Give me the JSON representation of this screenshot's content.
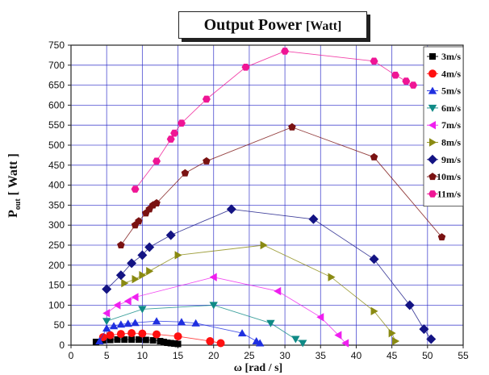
{
  "chart_data": {
    "type": "line",
    "title_main": "Output Power",
    "title_unit": "[Watt]",
    "ylabel_main": "P",
    "ylabel_sub": "out",
    "ylabel_unit": "[ Watt ]",
    "xlabel": "ω [rad / s]",
    "xlim": [
      0,
      55
    ],
    "ylim": [
      0,
      750
    ],
    "xticks": [
      0,
      5,
      10,
      15,
      20,
      25,
      30,
      35,
      40,
      45,
      50,
      55
    ],
    "yticks": [
      0,
      50,
      100,
      150,
      200,
      250,
      300,
      350,
      400,
      450,
      500,
      550,
      600,
      650,
      700,
      750
    ],
    "grid": true,
    "legend_position": "right",
    "series": [
      {
        "name": "3m/s",
        "marker": "square",
        "color": "#000000",
        "x": [
          3.5,
          4.5,
          5.5,
          6.5,
          7.5,
          8.5,
          9.5,
          10.5,
          11.5,
          12.5,
          13.0,
          13.5,
          14.0,
          14.5,
          15.0
        ],
        "y": [
          8,
          12,
          13,
          14,
          14,
          14,
          14,
          13,
          12,
          10,
          8,
          6,
          5,
          4,
          3
        ]
      },
      {
        "name": "4m/s",
        "marker": "circle",
        "color": "#ff1010",
        "x": [
          4.5,
          5.5,
          7.0,
          8.5,
          10.0,
          12.0,
          15.0,
          19.5,
          21.0
        ],
        "y": [
          20,
          25,
          28,
          30,
          29,
          27,
          22,
          10,
          5
        ]
      },
      {
        "name": "5m/s",
        "marker": "triangle-up",
        "color": "#1f2fe0",
        "x": [
          4.0,
          5.0,
          6.0,
          7.0,
          8.0,
          9.0,
          12.0,
          15.5,
          17.5,
          24.0,
          26.0,
          26.5
        ],
        "y": [
          10,
          42,
          48,
          52,
          54,
          56,
          60,
          58,
          55,
          30,
          10,
          5
        ]
      },
      {
        "name": "6m/s",
        "marker": "triangle-down",
        "color": "#0f8a86",
        "x": [
          5.0,
          10.0,
          20.0,
          28.0,
          31.5,
          32.5
        ],
        "y": [
          60,
          90,
          100,
          55,
          15,
          5
        ]
      },
      {
        "name": "7m/s",
        "marker": "triangle-left",
        "color": "#ef1fef",
        "x": [
          5.0,
          6.5,
          8.0,
          9.0,
          20.0,
          29.0,
          35.0,
          37.5,
          38.5
        ],
        "y": [
          80,
          100,
          110,
          120,
          170,
          135,
          70,
          25,
          5
        ]
      },
      {
        "name": "8m/s",
        "marker": "triangle-right",
        "color": "#8a8a12",
        "x": [
          7.5,
          9.0,
          10.0,
          11.0,
          15.0,
          27.0,
          36.5,
          42.5,
          45.0,
          45.5
        ],
        "y": [
          155,
          165,
          175,
          185,
          225,
          250,
          170,
          85,
          30,
          10
        ]
      },
      {
        "name": "9m/s",
        "marker": "diamond",
        "color": "#131383",
        "x": [
          5.0,
          7.0,
          8.5,
          10.0,
          11.0,
          14.0,
          22.5,
          34.0,
          42.5,
          47.5,
          49.5,
          50.5
        ],
        "y": [
          140,
          175,
          205,
          225,
          245,
          275,
          340,
          315,
          215,
          100,
          40,
          15
        ]
      },
      {
        "name": "10m/s",
        "marker": "pentagon",
        "color": "#7a1212",
        "x": [
          7.0,
          9.0,
          9.5,
          10.5,
          11.0,
          11.5,
          12.0,
          16.0,
          19.0,
          31.0,
          42.5,
          52.0
        ],
        "y": [
          250,
          300,
          310,
          330,
          340,
          350,
          355,
          430,
          460,
          545,
          470,
          270
        ]
      },
      {
        "name": "11m/s",
        "marker": "hexagon",
        "color": "#ef1595",
        "x": [
          9.0,
          12.0,
          14.0,
          14.5,
          15.5,
          19.0,
          24.5,
          30.0,
          42.5,
          45.5,
          47.0,
          48.0
        ],
        "y": [
          390,
          460,
          515,
          530,
          555,
          615,
          695,
          735,
          710,
          675,
          660,
          650
        ]
      }
    ]
  }
}
